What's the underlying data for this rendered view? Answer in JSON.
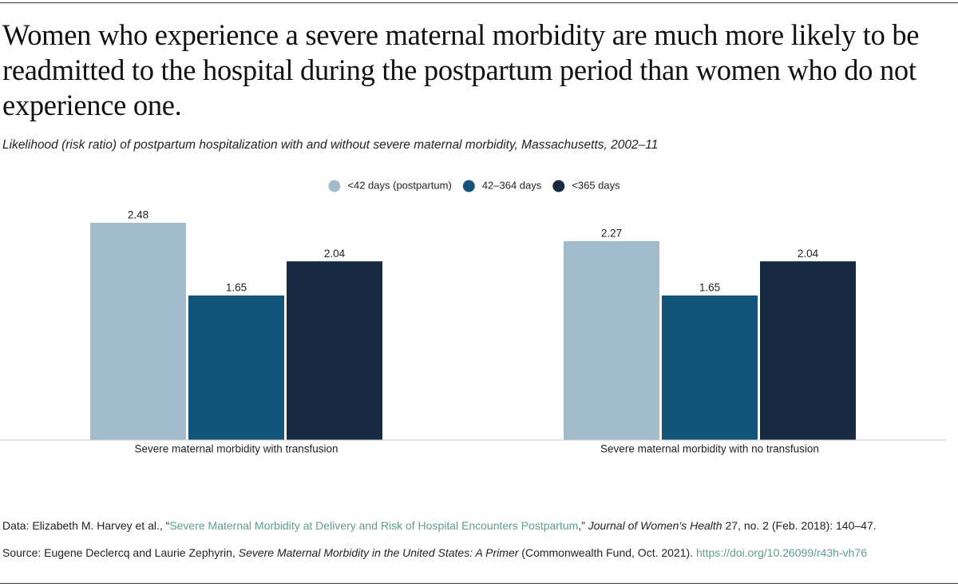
{
  "chart_data": {
    "type": "bar",
    "title": "Women who experience a severe maternal morbidity are much more likely to be readmitted to the hospital during the postpartum period than women who do not experience one.",
    "subtitle": "Likelihood (risk ratio) of postpartum hospitalization with and without severe maternal morbidity, Massachusetts, 2002–11",
    "categories": [
      "Severe maternal morbidity with transfusion",
      "Severe maternal morbidity with no transfusion"
    ],
    "series": [
      {
        "name": "<42 days (postpartum)",
        "color": "#a3bccb",
        "values": [
          2.48,
          2.27
        ]
      },
      {
        "name": "42–364 days",
        "color": "#13547a",
        "values": [
          1.65,
          1.65
        ]
      },
      {
        "name": "<365 days",
        "color": "#172a42",
        "values": [
          2.04,
          2.04
        ]
      }
    ],
    "data_note": [
      "Data: Elizabeth M. Harvey et al., “",
      "Severe Maternal Morbidity at Delivery and Risk of Hospital Encounters Postpartum",
      ",” ",
      "Journal of Women’s Health",
      " 27, no. 2 (Feb. 2018): 140–47."
    ],
    "source_note": [
      "Source: Eugene Declercq and Laurie Zephyrin, ",
      "Severe Maternal Morbidity in the United States: A Primer",
      " (Commonwealth Fund, Oct. 2021). ",
      "https://doi.org/10.26099/r43h-vh76"
    ]
  }
}
